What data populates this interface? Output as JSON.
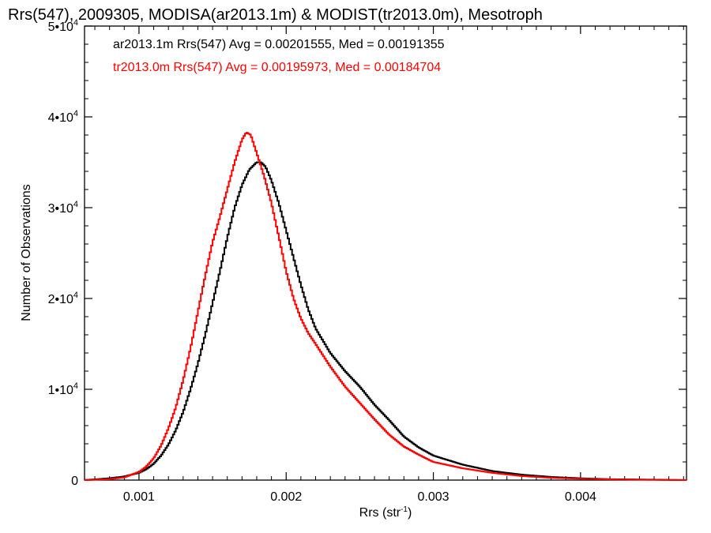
{
  "chart_data": {
    "type": "line",
    "step": true,
    "title": "Rrs(547), 2009305, MODISA(ar2013.1m) & MODIST(tr2013.0m), Mesotroph",
    "xlabel": "Rrs (str",
    "xlabel_sup": "-1",
    "xlabel_end": ")",
    "ylabel": "Number of Observations",
    "xlim": [
      0.00063,
      0.00472
    ],
    "ylim": [
      0,
      50000
    ],
    "x_ticks": [
      {
        "value": 0.001,
        "label": "0.001"
      },
      {
        "value": 0.002,
        "label": "0.002"
      },
      {
        "value": 0.003,
        "label": "0.003"
      },
      {
        "value": 0.004,
        "label": "0.004"
      }
    ],
    "y_ticks": [
      {
        "value": 0,
        "mant": "0",
        "exp": ""
      },
      {
        "value": 10000,
        "mant": "1•10",
        "exp": "4"
      },
      {
        "value": 20000,
        "mant": "2•10",
        "exp": "4"
      },
      {
        "value": 30000,
        "mant": "3•10",
        "exp": "4"
      },
      {
        "value": 40000,
        "mant": "4•10",
        "exp": "4"
      },
      {
        "value": 50000,
        "mant": "5•10",
        "exp": "4"
      }
    ],
    "annotations": [
      {
        "text": "ar2013.1m Rrs(547) Avg = 0.00201555, Med = 0.00191355",
        "color": "#000000"
      },
      {
        "text": "tr2013.0m Rrs(547) Avg = 0.00195973, Med = 0.00184704",
        "color": "#ff0000"
      }
    ],
    "series": [
      {
        "color": "#000000",
        "x": [
          0.00063,
          0.0008,
          0.0009,
          0.001,
          0.00105,
          0.0011,
          0.00115,
          0.0012,
          0.00125,
          0.0013,
          0.00135,
          0.0014,
          0.00145,
          0.0015,
          0.00155,
          0.0016,
          0.00165,
          0.0017,
          0.00175,
          0.0018,
          0.00183,
          0.00186,
          0.0019,
          0.00195,
          0.002,
          0.00205,
          0.0021,
          0.00215,
          0.0022,
          0.0023,
          0.0024,
          0.0025,
          0.0026,
          0.0027,
          0.0028,
          0.0029,
          0.003,
          0.0032,
          0.0034,
          0.0036,
          0.0038,
          0.004,
          0.0042,
          0.0045,
          0.00472
        ],
        "y": [
          0,
          200,
          400,
          800,
          1200,
          1800,
          2700,
          3900,
          5500,
          7500,
          10000,
          12800,
          16000,
          19500,
          23000,
          26700,
          30000,
          32500,
          34200,
          35000,
          35000,
          34500,
          33000,
          30500,
          27500,
          24500,
          21500,
          18800,
          16700,
          14000,
          12000,
          10300,
          8300,
          6600,
          4800,
          3600,
          2700,
          1700,
          1000,
          600,
          350,
          200,
          100,
          50,
          0
        ]
      },
      {
        "color": "#ff0000",
        "x": [
          0.00063,
          0.0008,
          0.0009,
          0.001,
          0.00105,
          0.0011,
          0.00115,
          0.0012,
          0.00125,
          0.0013,
          0.00135,
          0.0014,
          0.00145,
          0.0015,
          0.00155,
          0.0016,
          0.00165,
          0.0017,
          0.00173,
          0.00176,
          0.0018,
          0.00185,
          0.0019,
          0.00195,
          0.002,
          0.00205,
          0.0021,
          0.00215,
          0.0022,
          0.0023,
          0.0024,
          0.0025,
          0.0026,
          0.0027,
          0.0028,
          0.0029,
          0.003,
          0.0032,
          0.0034,
          0.0036,
          0.0038,
          0.004,
          0.0042,
          0.0045,
          0.00472
        ],
        "y": [
          0,
          100,
          300,
          900,
          1500,
          2400,
          3800,
          5700,
          8000,
          11000,
          14500,
          18500,
          22500,
          26200,
          29000,
          32000,
          35000,
          37500,
          38300,
          38000,
          36000,
          33500,
          30500,
          26800,
          23000,
          20000,
          17800,
          16200,
          15000,
          12500,
          10300,
          8500,
          6700,
          5000,
          3700,
          2800,
          2000,
          1300,
          800,
          450,
          250,
          150,
          80,
          30,
          0
        ]
      }
    ]
  }
}
